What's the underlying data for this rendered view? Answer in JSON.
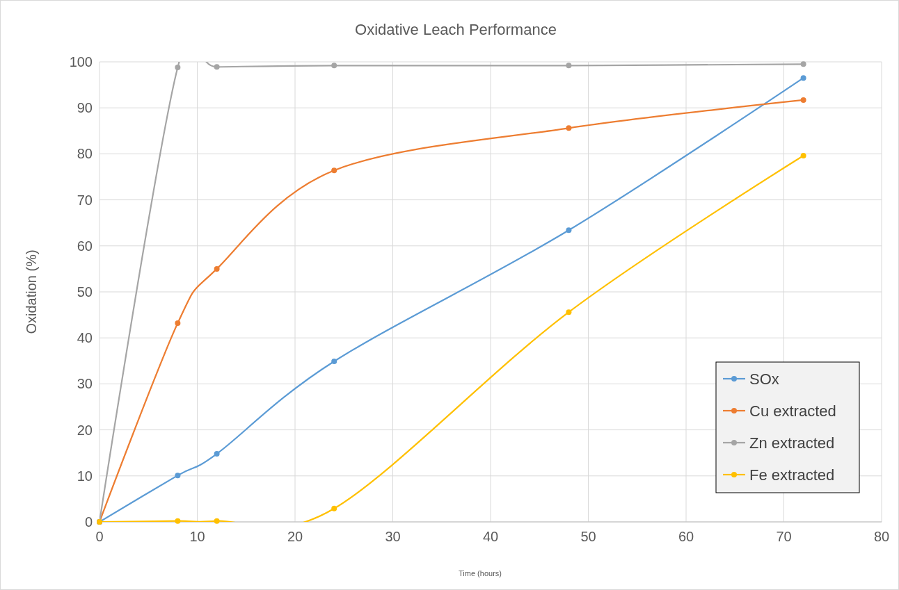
{
  "chart_data": {
    "type": "line",
    "title": "Oxidative Leach Performance",
    "xlabel": "Time (hours)",
    "ylabel": "Oxidation (%)",
    "x": [
      0,
      8,
      12,
      24,
      48,
      72
    ],
    "series": [
      {
        "name": "SOx",
        "color": "#5b9bd5",
        "values": [
          0,
          10.1,
          14.8,
          34.9,
          63.4,
          96.5
        ]
      },
      {
        "name": "Cu extracted",
        "color": "#ed7d31",
        "values": [
          0,
          43.2,
          55,
          76.4,
          85.6,
          91.7
        ]
      },
      {
        "name": "Zn extracted",
        "color": "#a5a5a5",
        "values": [
          0,
          98.8,
          98.9,
          99.2,
          99.2,
          99.5
        ]
      },
      {
        "name": "Fe extracted",
        "color": "#ffc000",
        "values": [
          0,
          0.2,
          0.2,
          2.9,
          45.6,
          79.6
        ]
      }
    ],
    "xlim": [
      0,
      80
    ],
    "xticks": [
      0,
      10,
      20,
      30,
      40,
      50,
      60,
      70,
      80
    ],
    "ylim": [
      0,
      100
    ],
    "yticks": [
      0,
      10,
      20,
      30,
      40,
      50,
      60,
      70,
      80,
      90,
      100
    ],
    "grid": true,
    "legend": "bottom right",
    "marker": "circle",
    "line_style": "solid"
  }
}
